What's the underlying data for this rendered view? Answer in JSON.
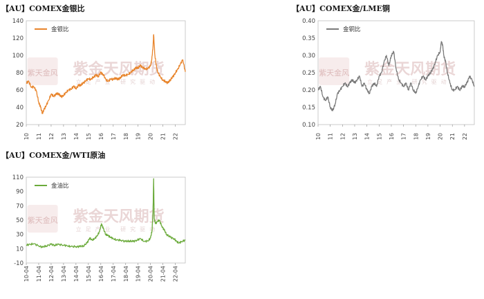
{
  "panels": [
    {
      "title": "【AU】COMEX金银比",
      "watermark": "紫金天风期货",
      "watermark_sub": "立足产业 研究驱动",
      "logo_text": "紫天金风",
      "colors": {
        "line": "#e8842b"
      }
    },
    {
      "title": "【AU】COMEX金/LME铜",
      "watermark": "紫金天风期货",
      "watermark_sub": "立足产业 研究驱动",
      "logo_text": "紫天金风",
      "colors": {
        "line": "#7a7a7a"
      }
    },
    {
      "title": "【AU】COMEX金/WTI原油",
      "watermark": "紫金天风期货",
      "watermark_sub": "立足产业 研究驱动",
      "logo_text": "紫天金风",
      "colors": {
        "line": "#6aaa3a"
      }
    }
  ],
  "chart_data": [
    {
      "type": "line",
      "title": "【AU】COMEX金银比",
      "ylim": [
        20,
        140
      ],
      "yticks": [
        20,
        40,
        60,
        80,
        100,
        120,
        140
      ],
      "xticks": [
        "10",
        "11",
        "12",
        "13",
        "14",
        "15",
        "16",
        "17",
        "18",
        "19",
        "20",
        "21",
        "22"
      ],
      "x_range": [
        2010.0,
        2022.8
      ],
      "legend": "top-left",
      "grid": false,
      "series": [
        {
          "name": "金银比",
          "x": [
            2010.0,
            2010.2,
            2010.4,
            2010.6,
            2010.8,
            2011.0,
            2011.15,
            2011.3,
            2011.45,
            2011.6,
            2011.8,
            2012.0,
            2012.2,
            2012.4,
            2012.6,
            2012.8,
            2013.0,
            2013.2,
            2013.4,
            2013.6,
            2013.8,
            2014.0,
            2014.2,
            2014.4,
            2014.6,
            2014.8,
            2015.0,
            2015.2,
            2015.4,
            2015.6,
            2015.8,
            2016.0,
            2016.2,
            2016.4,
            2016.6,
            2016.8,
            2017.0,
            2017.2,
            2017.4,
            2017.6,
            2017.8,
            2018.0,
            2018.2,
            2018.4,
            2018.6,
            2018.8,
            2019.0,
            2019.2,
            2019.4,
            2019.6,
            2019.8,
            2020.0,
            2020.1,
            2020.2,
            2020.25,
            2020.35,
            2020.5,
            2020.6,
            2020.8,
            2021.0,
            2021.2,
            2021.4,
            2021.6,
            2021.8,
            2022.0,
            2022.2,
            2022.4,
            2022.6,
            2022.8
          ],
          "values": [
            68,
            70,
            63,
            64,
            59,
            46,
            40,
            33,
            38,
            42,
            48,
            55,
            53,
            55,
            56,
            52,
            54,
            57,
            60,
            61,
            64,
            62,
            65,
            66,
            68,
            71,
            73,
            72,
            75,
            77,
            76,
            80,
            78,
            72,
            70,
            73,
            72,
            74,
            72,
            75,
            77,
            77,
            78,
            80,
            83,
            85,
            86,
            88,
            86,
            84,
            85,
            88,
            95,
            110,
            124,
            100,
            85,
            80,
            75,
            71,
            70,
            68,
            72,
            75,
            80,
            84,
            90,
            95,
            81
          ]
        }
      ]
    },
    {
      "type": "line",
      "title": "【AU】COMEX金/LME铜",
      "ylim": [
        0.1,
        0.4
      ],
      "yticks": [
        "0.10",
        "0.15",
        "0.20",
        "0.25",
        "0.30",
        "0.35",
        "0.40"
      ],
      "xticks": [
        "10",
        "11",
        "12",
        "13",
        "14",
        "15",
        "16",
        "17",
        "18",
        "19",
        "20",
        "21",
        "22"
      ],
      "x_range": [
        2010.0,
        2022.8
      ],
      "legend": "top-left",
      "grid": false,
      "series": [
        {
          "name": "金铜比",
          "x": [
            2010.0,
            2010.2,
            2010.4,
            2010.6,
            2010.8,
            2011.0,
            2011.2,
            2011.4,
            2011.6,
            2011.8,
            2012.0,
            2012.2,
            2012.4,
            2012.6,
            2012.8,
            2013.0,
            2013.2,
            2013.4,
            2013.6,
            2013.8,
            2014.0,
            2014.2,
            2014.4,
            2014.6,
            2014.8,
            2015.0,
            2015.2,
            2015.4,
            2015.6,
            2015.8,
            2016.0,
            2016.2,
            2016.4,
            2016.6,
            2016.8,
            2017.0,
            2017.2,
            2017.4,
            2017.6,
            2017.8,
            2018.0,
            2018.2,
            2018.4,
            2018.6,
            2018.8,
            2019.0,
            2019.2,
            2019.4,
            2019.6,
            2019.8,
            2020.0,
            2020.1,
            2020.2,
            2020.3,
            2020.45,
            2020.6,
            2020.8,
            2021.0,
            2021.2,
            2021.4,
            2021.6,
            2021.8,
            2022.0,
            2022.2,
            2022.4,
            2022.6,
            2022.8
          ],
          "values": [
            0.2,
            0.21,
            0.18,
            0.17,
            0.18,
            0.15,
            0.14,
            0.16,
            0.19,
            0.2,
            0.21,
            0.22,
            0.21,
            0.22,
            0.23,
            0.22,
            0.23,
            0.24,
            0.21,
            0.22,
            0.2,
            0.19,
            0.21,
            0.22,
            0.21,
            0.24,
            0.25,
            0.28,
            0.3,
            0.27,
            0.3,
            0.31,
            0.26,
            0.23,
            0.22,
            0.21,
            0.22,
            0.2,
            0.22,
            0.2,
            0.19,
            0.21,
            0.23,
            0.24,
            0.23,
            0.24,
            0.25,
            0.26,
            0.28,
            0.3,
            0.31,
            0.34,
            0.33,
            0.3,
            0.28,
            0.25,
            0.22,
            0.2,
            0.2,
            0.21,
            0.2,
            0.21,
            0.21,
            0.22,
            0.24,
            0.23,
            0.21
          ]
        }
      ]
    },
    {
      "type": "line",
      "title": "【AU】COMEX金/WTI原油",
      "ylim": [
        -10,
        110
      ],
      "yticks": [
        -10,
        10,
        30,
        50,
        70,
        90,
        110
      ],
      "xticks": [
        "10-04",
        "11-04",
        "12-04",
        "13-04",
        "14-04",
        "15-04",
        "16-04",
        "17-04",
        "18-04",
        "19-04",
        "20-04",
        "21-04",
        "22-04"
      ],
      "x_range": [
        2010.0,
        2022.8
      ],
      "legend": "top-left",
      "grid": false,
      "series": [
        {
          "name": "金油比",
          "x": [
            2010.0,
            2010.3,
            2010.6,
            2011.0,
            2011.3,
            2011.6,
            2012.0,
            2012.3,
            2012.6,
            2013.0,
            2013.3,
            2013.6,
            2014.0,
            2014.3,
            2014.6,
            2014.9,
            2015.1,
            2015.3,
            2015.5,
            2015.7,
            2015.9,
            2016.05,
            2016.2,
            2016.4,
            2016.6,
            2016.8,
            2017.0,
            2017.3,
            2017.6,
            2018.0,
            2018.3,
            2018.6,
            2018.9,
            2019.2,
            2019.5,
            2019.8,
            2020.0,
            2020.12,
            2020.2,
            2020.25,
            2020.3,
            2020.4,
            2020.55,
            2020.7,
            2020.9,
            2021.1,
            2021.3,
            2021.6,
            2021.9,
            2022.1,
            2022.3,
            2022.5,
            2022.8
          ],
          "values": [
            15,
            16,
            17,
            14,
            12,
            14,
            16,
            15,
            16,
            15,
            14,
            13,
            13,
            13,
            14,
            18,
            25,
            22,
            24,
            28,
            34,
            45,
            38,
            30,
            28,
            26,
            24,
            22,
            22,
            20,
            21,
            20,
            22,
            24,
            20,
            21,
            25,
            35,
            60,
            108,
            52,
            45,
            48,
            50,
            42,
            36,
            30,
            26,
            24,
            20,
            18,
            20,
            22
          ]
        }
      ]
    }
  ]
}
